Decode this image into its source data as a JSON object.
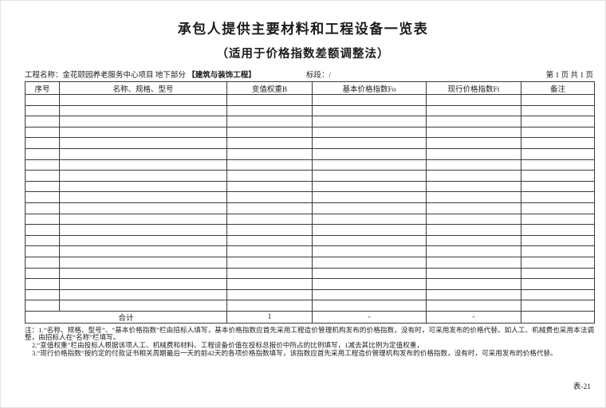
{
  "page": {
    "title": "承包人提供主要材料和工程设备一览表",
    "subtitle": "（适用于价格指数差额调整法）",
    "form_code": "表-21"
  },
  "info_bar": {
    "project_label": "工程名称：",
    "project_name": "金花颐园养老服务中心项目 地下部分 ",
    "project_tag": "【建筑与装饰工程】",
    "section_label": "标段：",
    "section_value": "/",
    "page_indicator": "第  1 页 共 1 页"
  },
  "table": {
    "columns": [
      "序号",
      "名称、规格、型号",
      "变值权重B",
      "基本价格指数Fo",
      "现行价格指数Ft",
      "备注"
    ],
    "empty_row_count": 20,
    "total_row": {
      "label": "合计",
      "weight_b": "1",
      "base_index": "-",
      "current_index": "-",
      "remark": ""
    }
  },
  "notes": {
    "line1": "注：1.“名称、规格、型号”、“基本价格指数”栏由招标人填写，基本价格指数应首先采用工程造价管理机构发布的价格指数，没有时，可采用发布的价格代替。如人工、机械费也采用本法调整，由招标人在“名称”栏填写。",
    "line2": "2.“变值权重”栏由投标人根据该项人工、机械费和材料、工程设备价值在投标总报价中所占的比例填写，1减去其比例为定值权重，",
    "line3": "3.“现行价格指数”按约定的付款证书相关周期最后一天的前42天的各项价格指数填写，该指数应首先采用工程造价管理机构发布的价格指数，没有时，可采用发布的价格代替。"
  }
}
